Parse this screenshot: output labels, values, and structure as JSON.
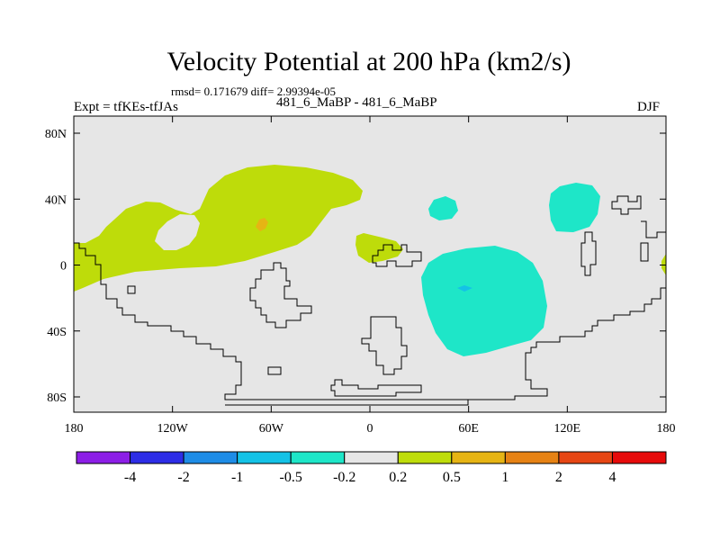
{
  "header": {
    "title": "Velocity Potential at 200 hPa (km2/s)",
    "stats": "rmsd= 0.171679 diff= 2.99394e-05",
    "left_label": "Expt = tfKEs-tfJAs",
    "center_label": "481_6_MaBP - 481_6_MaBP",
    "right_label": "DJF"
  },
  "map": {
    "x_ticks": [
      "180",
      "120W",
      "60W",
      "0",
      "60E",
      "120E",
      "180"
    ],
    "y_ticks": [
      "80N",
      "40N",
      "0",
      "40S",
      "80S"
    ],
    "background_color": "#e6e6e6"
  },
  "colorbar": {
    "labels": [
      "-4",
      "-2",
      "-1",
      "-0.5",
      "-0.2",
      "0.2",
      "0.5",
      "1",
      "2",
      "4"
    ],
    "colors": [
      "#8c1ee6",
      "#2d2de6",
      "#1e8ce6",
      "#14c2e6",
      "#1ee6c8",
      "#e6e6e6",
      "#bedc0a",
      "#e6b414",
      "#e68214",
      "#e64614",
      "#e60a0a"
    ]
  }
}
